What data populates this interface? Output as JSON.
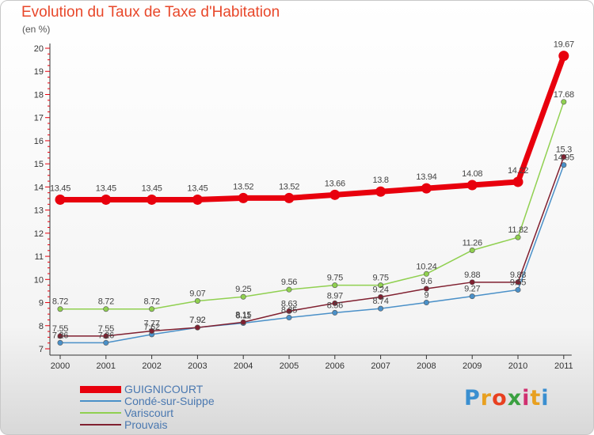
{
  "brand": {
    "logo_text": "Proxiti"
  },
  "chart_data": {
    "type": "line",
    "title": "Evolution du Taux de Taxe d'Habitation",
    "unit_label": "(en %)",
    "xlabel": "",
    "ylabel": "",
    "x": [
      "2000",
      "2001",
      "2002",
      "2003",
      "2004",
      "2005",
      "2006",
      "2007",
      "2008",
      "2009",
      "2010",
      "2011"
    ],
    "yticks": [
      "7",
      "8",
      "9",
      "10",
      "11",
      "12",
      "13",
      "14",
      "15",
      "16",
      "17",
      "18",
      "19",
      "20"
    ],
    "ylim": [
      7,
      20
    ],
    "grid": false,
    "legend_position": "bottom-left",
    "series": [
      {
        "name": "GUIGNICOURT",
        "color": "#e8000d",
        "emphasis": true,
        "values": [
          13.45,
          13.45,
          13.45,
          13.45,
          13.52,
          13.52,
          13.66,
          13.8,
          13.94,
          14.08,
          14.22,
          19.67
        ],
        "labels": [
          "13.45",
          "13.45",
          "13.45",
          "13.45",
          "13.52",
          "13.52",
          "13.66",
          "13.8",
          "13.94",
          "14.08",
          "14.22",
          "19.67"
        ]
      },
      {
        "name": "Condé-sur-Suippe",
        "color": "#4a90c8",
        "emphasis": false,
        "values": [
          7.26,
          7.26,
          7.62,
          7.92,
          8.11,
          8.35,
          8.56,
          8.74,
          9,
          9.27,
          9.55,
          14.95
        ],
        "labels": [
          "7.26",
          "7.26",
          "7.62",
          "7.92",
          "8.11",
          "8.35",
          "8.56",
          "8.74",
          "9",
          "9.27",
          "9.55",
          "14.95"
        ]
      },
      {
        "name": "Variscourt",
        "color": "#90d050",
        "emphasis": false,
        "values": [
          8.72,
          8.72,
          8.72,
          9.07,
          9.25,
          9.56,
          9.75,
          9.75,
          10.24,
          11.26,
          11.82,
          17.68
        ],
        "labels": [
          "8.72",
          "8.72",
          "8.72",
          "9.07",
          "9.25",
          "9.56",
          "9.75",
          "9.75",
          "10.24",
          "11.26",
          "11.82",
          "17.68"
        ]
      },
      {
        "name": "Prouvais",
        "color": "#802030",
        "emphasis": false,
        "values": [
          7.55,
          7.55,
          7.77,
          7.92,
          8.15,
          8.63,
          8.97,
          9.24,
          9.6,
          9.88,
          9.88,
          15.3
        ],
        "labels": [
          "7.55",
          "7.55",
          "7.77",
          "7.92",
          "8.15",
          "8.63",
          "8.97",
          "9.24",
          "9.6",
          "9.88",
          "9.88",
          "15.3"
        ]
      }
    ]
  }
}
